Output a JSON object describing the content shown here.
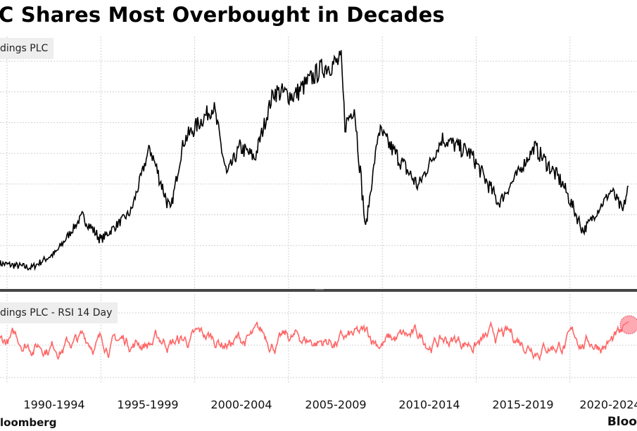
{
  "chart_data": [
    {
      "type": "line",
      "title": "C Shares Most Overbought in Decades",
      "legend": "dings PLC",
      "series_color": "#000000",
      "grid": true,
      "x_tick_labels": [
        "1990-1994",
        "1995-1999",
        "2000-2004",
        "2005-2009",
        "2010-2014",
        "2015-2019",
        "2020-2024"
      ],
      "xlim": [
        1990,
        2025
      ],
      "ylim": [
        0,
        100
      ],
      "series": [
        {
          "x": [
            1989.6,
            1991.3,
            1992.6,
            1994.0,
            1995.0,
            1996.6,
            1997.6,
            1998.7,
            1999.4,
            2001.0,
            2001.7,
            2002.4,
            2003.2,
            2004.2,
            2005.3,
            2006.8,
            2007.8,
            2008.0,
            2008.5,
            2009.1,
            2009.8,
            2011.9,
            2013.2,
            2014.7,
            2016.2,
            2018.1,
            2019.6,
            2020.7,
            2022.2,
            2022.8,
            2023.1
          ],
          "y": [
            6,
            4,
            11,
            28,
            17,
            30,
            60,
            30,
            63,
            79,
            47,
            60,
            55,
            86,
            84,
            97,
            100,
            70,
            79,
            22,
            68,
            42,
            64,
            57,
            34,
            60,
            43,
            21,
            40,
            30,
            42
          ]
        }
      ]
    },
    {
      "type": "line",
      "legend": "dings PLC - RSI 14 Day",
      "series_color": "#ff6666",
      "highlight_color": "#ff6f7f",
      "grid": true,
      "xlim": [
        1990,
        2025
      ],
      "typical_range": [
        30,
        80
      ],
      "last_value_highlighted": true
    }
  ],
  "source_left": "loomberg",
  "source_right": "Bloo"
}
